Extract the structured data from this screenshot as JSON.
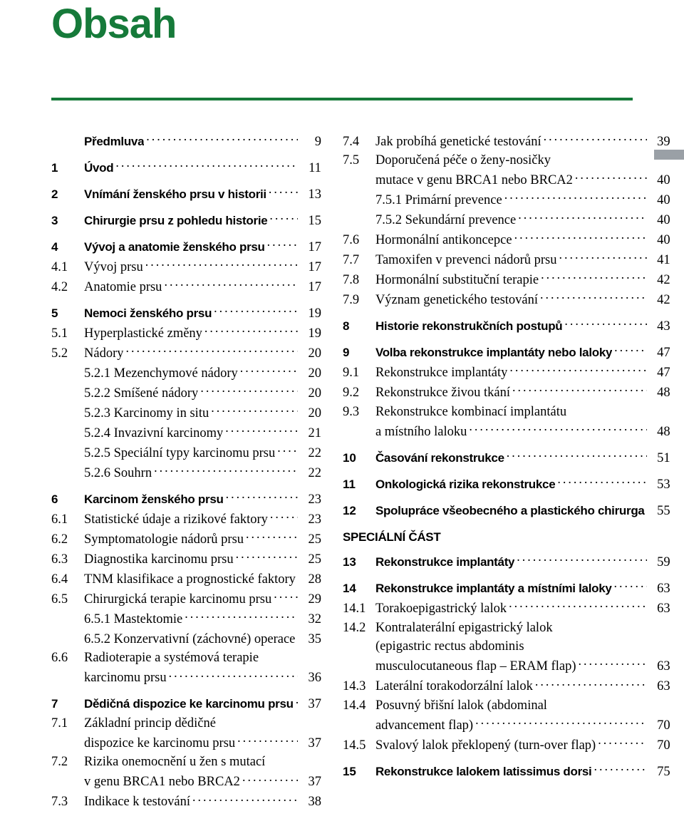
{
  "title": "Obsah",
  "colors": {
    "accent": "#167a3a",
    "rule": "#167a3a",
    "tab": "#9aa0a6",
    "text": "#000000"
  },
  "left": [
    {
      "num": "",
      "title": "Předmluva",
      "page": "9",
      "level": 0
    },
    {
      "num": "1",
      "title": "Úvod",
      "page": "11",
      "level": 0
    },
    {
      "num": "2",
      "title": "Vnímání ženského prsu v historii",
      "page": "13",
      "level": 0
    },
    {
      "num": "3",
      "title": "Chirurgie prsu z pohledu historie",
      "page": "15",
      "level": 0
    },
    {
      "num": "4",
      "title": "Vývoj a anatomie ženského prsu",
      "page": "17",
      "level": 0
    },
    {
      "num": "4.1",
      "title": "Vývoj prsu",
      "page": "17",
      "level": 1
    },
    {
      "num": "4.2",
      "title": "Anatomie prsu",
      "page": "17",
      "level": 1
    },
    {
      "num": "5",
      "title": "Nemoci ženského prsu",
      "page": "19",
      "level": 0
    },
    {
      "num": "5.1",
      "title": "Hyperplastické změny",
      "page": "19",
      "level": 1
    },
    {
      "num": "5.2",
      "title": "Nádory",
      "page": "20",
      "level": 1
    },
    {
      "num": "",
      "title": "5.2.1 Mezenchymové nádory",
      "page": "20",
      "level": 2
    },
    {
      "num": "",
      "title": "5.2.2 Smíšené nádory",
      "page": "20",
      "level": 2
    },
    {
      "num": "",
      "title": "5.2.3 Karcinomy in situ",
      "page": "20",
      "level": 2
    },
    {
      "num": "",
      "title": "5.2.4 Invazivní karcinomy",
      "page": "21",
      "level": 2
    },
    {
      "num": "",
      "title": "5.2.5 Speciální typy karcinomu prsu",
      "page": "22",
      "level": 2
    },
    {
      "num": "",
      "title": "5.2.6 Souhrn",
      "page": "22",
      "level": 2
    },
    {
      "num": "6",
      "title": "Karcinom ženského prsu",
      "page": "23",
      "level": 0
    },
    {
      "num": "6.1",
      "title": "Statistické údaje a rizikové faktory",
      "page": "23",
      "level": 1
    },
    {
      "num": "6.2",
      "title": "Symptomatologie nádorů prsu",
      "page": "25",
      "level": 1
    },
    {
      "num": "6.3",
      "title": "Diagnostika karcinomu prsu",
      "page": "25",
      "level": 1
    },
    {
      "num": "6.4",
      "title": "TNM klasifikace a prognostické faktory",
      "page": "28",
      "level": 1
    },
    {
      "num": "6.5",
      "title": "Chirurgická terapie karcinomu prsu",
      "page": "29",
      "level": 1
    },
    {
      "num": "",
      "title": "6.5.1 Mastektomie",
      "page": "32",
      "level": 2
    },
    {
      "num": "",
      "title": "6.5.2 Konzervativní (záchovné) operace",
      "page": "35",
      "level": 2
    },
    {
      "num": "6.6",
      "title": "Radioterapie a systémová terapie",
      "page": "",
      "level": 1,
      "nolead": true
    },
    {
      "num": "",
      "title": "karcinomu prsu",
      "page": "36",
      "level": 1,
      "cont": true
    },
    {
      "num": "7",
      "title": "Dědičná dispozice ke karcinomu prsu",
      "page": "37",
      "level": 0
    },
    {
      "num": "7.1",
      "title": "Základní princip dědičné",
      "page": "",
      "level": 1,
      "nolead": true
    },
    {
      "num": "",
      "title": "dispozice ke karcinomu prsu",
      "page": "37",
      "level": 1,
      "cont": true
    },
    {
      "num": "7.2",
      "title": "Rizika onemocnění u žen s mutací",
      "page": "",
      "level": 1,
      "nolead": true
    },
    {
      "num": "",
      "title": "v genu BRCA1 nebo BRCA2",
      "page": "37",
      "level": 1,
      "cont": true
    },
    {
      "num": "7.3",
      "title": "Indikace k testování",
      "page": "38",
      "level": 1
    }
  ],
  "right": [
    {
      "num": "7.4",
      "title": "Jak probíhá genetické testování",
      "page": "39",
      "level": 1
    },
    {
      "num": "7.5",
      "title": "Doporučená péče o ženy-nosičky",
      "page": "",
      "level": 1,
      "nolead": true
    },
    {
      "num": "",
      "title": "mutace v genu BRCA1 nebo BRCA2",
      "page": "40",
      "level": 1,
      "cont": true
    },
    {
      "num": "",
      "title": "7.5.1 Primární prevence",
      "page": "40",
      "level": 2
    },
    {
      "num": "",
      "title": "7.5.2 Sekundární prevence",
      "page": "40",
      "level": 2
    },
    {
      "num": "7.6",
      "title": "Hormonální antikoncepce",
      "page": "40",
      "level": 1
    },
    {
      "num": "7.7",
      "title": "Tamoxifen v prevenci nádorů prsu",
      "page": "41",
      "level": 1
    },
    {
      "num": "7.8",
      "title": "Hormonální substituční terapie",
      "page": "42",
      "level": 1
    },
    {
      "num": "7.9",
      "title": "Význam genetického testování",
      "page": "42",
      "level": 1
    },
    {
      "num": "8",
      "title": "Historie rekonstrukčních postupů",
      "page": "43",
      "level": 0
    },
    {
      "num": "9",
      "title": "Volba rekonstrukce implantáty nebo laloky",
      "page": "47",
      "level": 0
    },
    {
      "num": "9.1",
      "title": "Rekonstrukce implantáty",
      "page": "47",
      "level": 1
    },
    {
      "num": "9.2",
      "title": "Rekonstrukce živou tkání",
      "page": "48",
      "level": 1
    },
    {
      "num": "9.3",
      "title": "Rekonstrukce kombinací implantátu",
      "page": "",
      "level": 1,
      "nolead": true
    },
    {
      "num": "",
      "title": "a místního laloku",
      "page": "48",
      "level": 1,
      "cont": true
    },
    {
      "num": "10",
      "title": "Časování rekonstrukce",
      "page": "51",
      "level": 0
    },
    {
      "num": "11",
      "title": "Onkologická rizika rekonstrukce",
      "page": "53",
      "level": 0
    },
    {
      "num": "12",
      "title": "Spolupráce všeobecného a plastického chirurga",
      "page": "55",
      "level": 0
    },
    {
      "num": "",
      "title": "SPECIÁLNÍ ČÁST",
      "page": "",
      "level": -1,
      "heading": true
    },
    {
      "num": "13",
      "title": "Rekonstrukce implantáty",
      "page": "59",
      "level": 0
    },
    {
      "num": "14",
      "title": "Rekonstrukce implantáty a místními laloky",
      "page": "63",
      "level": 0
    },
    {
      "num": "14.1",
      "title": "Torakoepigastrický lalok",
      "page": "63",
      "level": 1
    },
    {
      "num": "14.2",
      "title": "Kontralaterální epigastrický lalok",
      "page": "",
      "level": 1,
      "nolead": true
    },
    {
      "num": "",
      "title": "(epigastric rectus abdominis",
      "page": "",
      "level": 1,
      "cont": true,
      "nolead": true
    },
    {
      "num": "",
      "title": "musculocutaneous flap – ERAM flap)",
      "page": "63",
      "level": 1,
      "cont": true
    },
    {
      "num": "14.3",
      "title": "Laterální torakodorzální lalok",
      "page": "63",
      "level": 1
    },
    {
      "num": "14.4",
      "title": "Posuvný břišní lalok (abdominal",
      "page": "",
      "level": 1,
      "nolead": true
    },
    {
      "num": "",
      "title": "advancement flap)",
      "page": "70",
      "level": 1,
      "cont": true
    },
    {
      "num": "14.5",
      "title": "Svalový lalok překlopený (turn-over flap)",
      "page": "70",
      "level": 1
    },
    {
      "num": "15",
      "title": "Rekonstrukce lalokem latissimus dorsi",
      "page": "75",
      "level": 0
    }
  ]
}
